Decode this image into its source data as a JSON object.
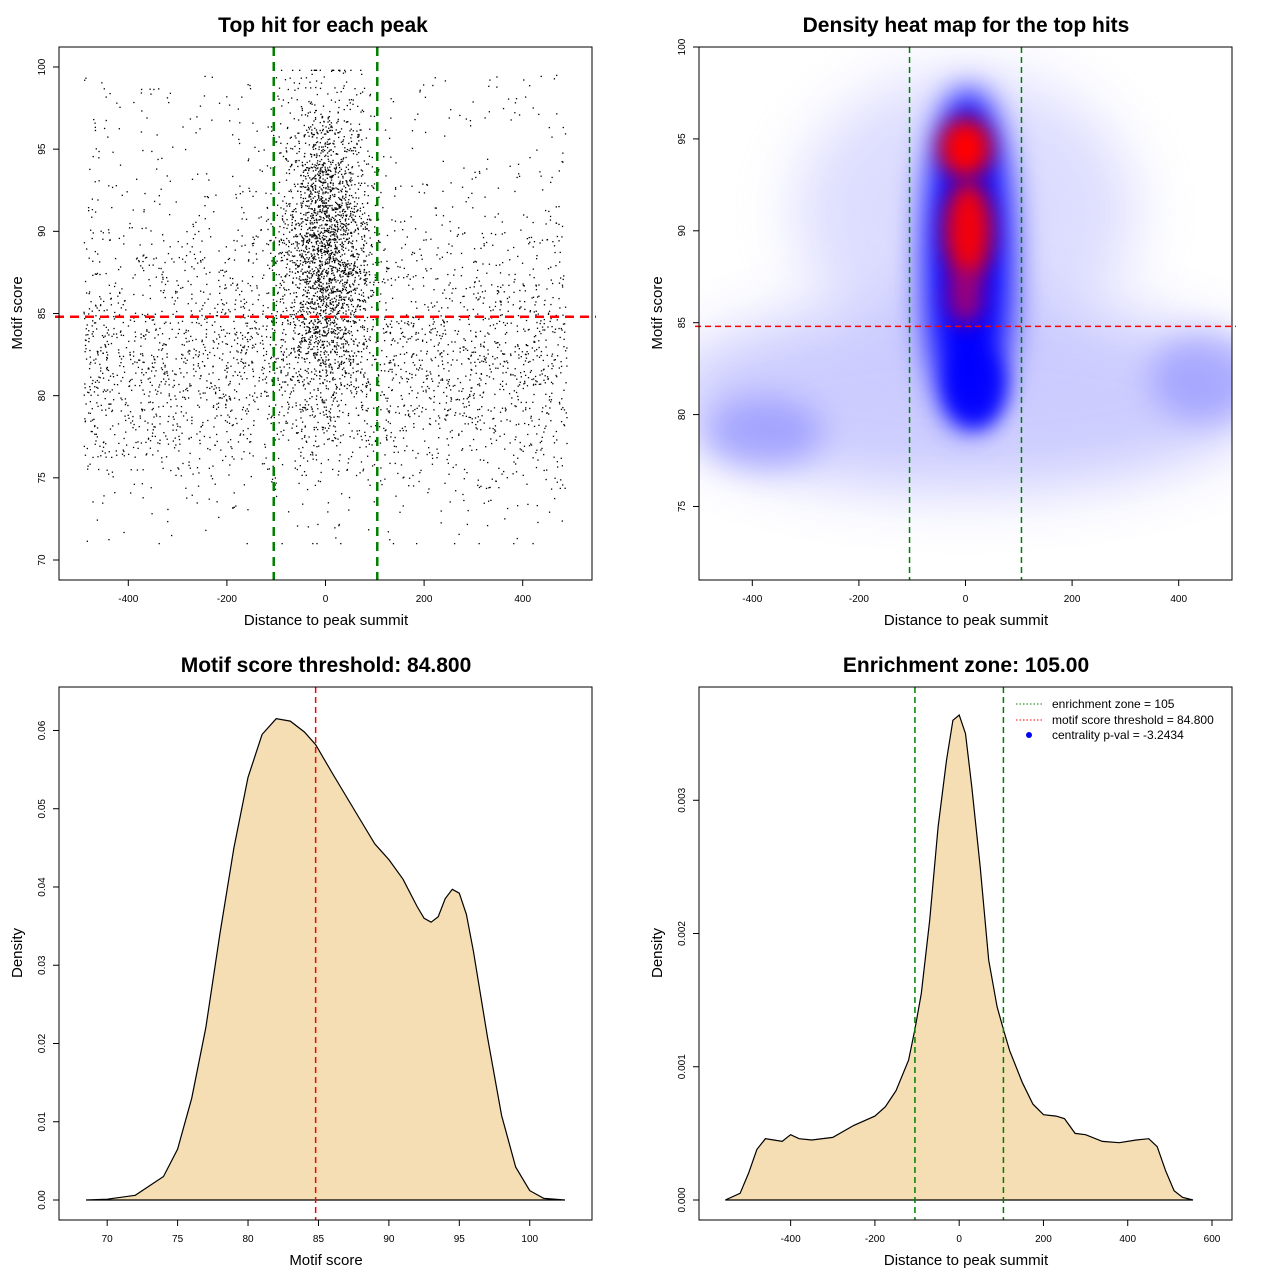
{
  "chart_data": [
    {
      "id": "scatter",
      "type": "scatter",
      "title": "Top hit for each peak",
      "xlabel": "Distance to peak summit",
      "ylabel": "Motif score",
      "xlim": [
        -500,
        500
      ],
      "ylim": [
        70,
        100
      ],
      "xticks": [
        -400,
        -200,
        0,
        200,
        400
      ],
      "yticks": [
        70,
        75,
        80,
        85,
        90,
        95,
        100
      ],
      "grid": false,
      "point_color": "#000000",
      "hlines": [
        {
          "value": 84.8,
          "color": "#ff0000"
        }
      ],
      "vlines": [
        {
          "value": -105,
          "color": "#008000"
        },
        {
          "value": 105,
          "color": "#008000"
        }
      ],
      "note": "about 6000 points; dense near x=0 and y above 80, sparse low scores"
    },
    {
      "id": "heatmap",
      "type": "heatmap",
      "title": "Density heat map for the top hits",
      "xlabel": "Distance to peak summit",
      "ylabel": "Motif score",
      "xlim": [
        -500,
        500
      ],
      "ylim": [
        71,
        100
      ],
      "xticks": [
        -400,
        -200,
        0,
        200,
        400
      ],
      "yticks": [
        75,
        80,
        85,
        90,
        95,
        100
      ],
      "colors": [
        "#ffffff",
        "#0000ff",
        "#ff0000"
      ],
      "hlines": [
        {
          "value": 84.8,
          "color": "#ff0000"
        }
      ],
      "vlines": [
        {
          "value": -105,
          "color": "#008000"
        },
        {
          "value": 105,
          "color": "#008000"
        }
      ],
      "hotspots": [
        {
          "x": 0,
          "y": 94.5,
          "level": "high"
        },
        {
          "x": 5,
          "y": 90.5,
          "level": "high"
        },
        {
          "x": 0,
          "y": 87,
          "level": "high"
        },
        {
          "x": 20,
          "y": 82,
          "level": "medium"
        },
        {
          "x": -380,
          "y": 79,
          "level": "low"
        },
        {
          "x": 450,
          "y": 82,
          "level": "low"
        }
      ]
    },
    {
      "id": "score_density",
      "type": "area",
      "title": "Motif score threshold: 84.800",
      "xlabel": "Motif score",
      "ylabel": "Density",
      "xlim": [
        68,
        103
      ],
      "ylim": [
        0,
        0.063
      ],
      "xticks": [
        70,
        75,
        80,
        85,
        90,
        95,
        100
      ],
      "yticks": [
        0.0,
        0.01,
        0.02,
        0.03,
        0.04,
        0.05,
        0.06
      ],
      "ytick_labels": [
        "0.00",
        "0.01",
        "0.02",
        "0.03",
        "0.04",
        "0.05",
        "0.06"
      ],
      "fill": "#f5deb3",
      "x": [
        68.5,
        70,
        72,
        74,
        75,
        76,
        77,
        78,
        79,
        80,
        81,
        82,
        83,
        84,
        84.8,
        86,
        87,
        88,
        89,
        90,
        91,
        92,
        92.5,
        93,
        93.5,
        94,
        94.5,
        95,
        95.5,
        96,
        97,
        98,
        99,
        100,
        101,
        102.5
      ],
      "y": [
        0.0,
        0.0001,
        0.0006,
        0.003,
        0.0065,
        0.013,
        0.022,
        0.034,
        0.045,
        0.054,
        0.0595,
        0.0615,
        0.0612,
        0.0598,
        0.0582,
        0.0545,
        0.0515,
        0.0485,
        0.0455,
        0.0435,
        0.041,
        0.0375,
        0.036,
        0.0355,
        0.0362,
        0.0385,
        0.0397,
        0.0392,
        0.0365,
        0.0318,
        0.0208,
        0.0108,
        0.0042,
        0.0012,
        0.0002,
        0.0
      ],
      "vlines": [
        {
          "value": 84.8,
          "color": "#ff0000"
        }
      ]
    },
    {
      "id": "distance_density",
      "type": "area",
      "title": "Enrichment zone: 105.00",
      "xlabel": "Distance to peak summit",
      "ylabel": "Density",
      "xlim": [
        -570,
        600
      ],
      "ylim": [
        0,
        0.0037
      ],
      "xticks": [
        -400,
        -200,
        0,
        200,
        400,
        600
      ],
      "yticks": [
        0.0,
        0.001,
        0.002,
        0.003
      ],
      "ytick_labels": [
        "0.000",
        "0.001",
        "0.002",
        "0.003"
      ],
      "fill": "#f5deb3",
      "x": [
        -555,
        -520,
        -500,
        -480,
        -460,
        -440,
        -420,
        -400,
        -380,
        -350,
        -300,
        -250,
        -200,
        -175,
        -150,
        -120,
        -105,
        -90,
        -70,
        -50,
        -30,
        -15,
        0,
        15,
        30,
        50,
        70,
        90,
        105,
        120,
        150,
        175,
        200,
        230,
        250,
        275,
        300,
        340,
        380,
        420,
        450,
        470,
        490,
        510,
        530,
        555
      ],
      "y": [
        0.0,
        5e-05,
        0.0002,
        0.00038,
        0.00046,
        0.00045,
        0.00044,
        0.00049,
        0.00046,
        0.00045,
        0.00047,
        0.00056,
        0.00063,
        0.0007,
        0.00082,
        0.00105,
        0.00128,
        0.00155,
        0.0021,
        0.0028,
        0.0033,
        0.0036,
        0.00364,
        0.0035,
        0.0031,
        0.0025,
        0.0018,
        0.00145,
        0.00128,
        0.00112,
        0.00088,
        0.00072,
        0.00064,
        0.00063,
        0.00061,
        0.0005,
        0.00049,
        0.00044,
        0.00043,
        0.00045,
        0.00046,
        0.0004,
        0.00022,
        7e-05,
        2e-05,
        0.0
      ],
      "vlines": [
        {
          "value": -105,
          "color": "#008000"
        },
        {
          "value": 105,
          "color": "#008000"
        }
      ],
      "legend": {
        "position": "top-right",
        "entries": [
          {
            "label": "enrichment zone = 105",
            "style": "dotted-line",
            "color": "#008000"
          },
          {
            "label": "motif score threshold = 84.800",
            "style": "dotted-line",
            "color": "#ff0000"
          },
          {
            "label": "centrality p-val = -3.2434",
            "style": "dot",
            "color": "#0000ff"
          }
        ]
      }
    }
  ]
}
